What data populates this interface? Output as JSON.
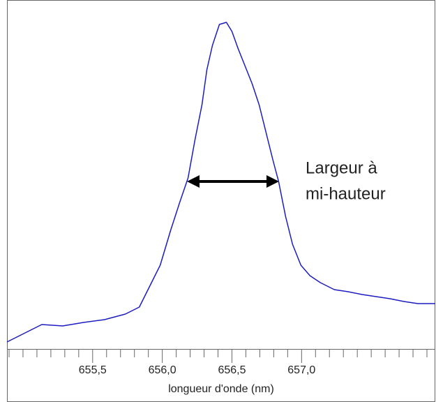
{
  "chart_data": {
    "type": "line",
    "x_label": "longueur d'onde (nm)",
    "annotation": [
      "Largeur à",
      "mi-hauteur"
    ],
    "x": [
      654.885,
      654.985,
      655.135,
      655.285,
      655.435,
      655.585,
      655.735,
      655.835,
      655.91,
      655.985,
      656.06,
      656.125,
      656.185,
      656.235,
      656.285,
      656.32,
      656.36,
      656.41,
      656.46,
      656.5,
      656.545,
      656.595,
      656.645,
      656.695,
      656.745,
      656.795,
      656.835,
      656.885,
      656.935,
      656.995,
      657.06,
      657.135,
      657.235,
      657.335,
      657.435,
      657.535,
      657.635,
      657.735,
      657.835,
      657.96
    ],
    "values": [
      2,
      4,
      7,
      6.6,
      7.6,
      8.4,
      10,
      12,
      18,
      24,
      34,
      42,
      49,
      60,
      70,
      80,
      87,
      93,
      93.6,
      91,
      86,
      81,
      76,
      70,
      62,
      54,
      48,
      38,
      30,
      24,
      21,
      19,
      17,
      16.4,
      15.6,
      15,
      14.4,
      13.6,
      13,
      13
    ],
    "color": "#1c1cc0",
    "xlim": [
      654.885,
      657.96
    ],
    "ylim": [
      0,
      100
    ],
    "xticks": [
      {
        "value": 655.5,
        "label": "655,5"
      },
      {
        "value": 656.0,
        "label": "656,0"
      },
      {
        "value": 656.5,
        "label": "656,5"
      },
      {
        "value": 657.0,
        "label": "657,0"
      }
    ],
    "xminorticks": [
      654.9,
      655.0,
      655.1,
      655.2,
      655.3,
      655.4,
      655.6,
      655.7,
      655.8,
      655.9,
      656.1,
      656.2,
      656.3,
      656.4,
      656.6,
      656.7,
      656.8,
      656.9,
      657.1,
      657.2,
      657.3,
      657.4,
      657.5,
      657.6,
      657.7,
      657.8,
      657.9
    ]
  }
}
